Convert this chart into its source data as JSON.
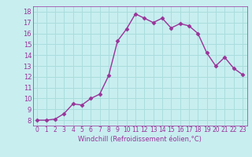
{
  "x": [
    0,
    1,
    2,
    3,
    4,
    5,
    6,
    7,
    8,
    9,
    10,
    11,
    12,
    13,
    14,
    15,
    16,
    17,
    18,
    19,
    20,
    21,
    22,
    23
  ],
  "y": [
    8.0,
    8.0,
    8.1,
    8.6,
    9.5,
    9.4,
    10.0,
    10.4,
    12.1,
    15.3,
    16.4,
    17.8,
    17.4,
    17.0,
    17.4,
    16.5,
    16.9,
    16.7,
    16.0,
    14.2,
    13.0,
    13.8,
    12.8,
    12.2
  ],
  "line_color": "#993399",
  "bg_color": "#c8eef0",
  "grid_color": "#aadddd",
  "xlabel": "Windchill (Refroidissement éolien,°C)",
  "ylabel_ticks": [
    8,
    9,
    10,
    11,
    12,
    13,
    14,
    15,
    16,
    17,
    18
  ],
  "xtick_labels": [
    "0",
    "1",
    "2",
    "3",
    "4",
    "5",
    "6",
    "7",
    "8",
    "9",
    "10",
    "11",
    "12",
    "13",
    "14",
    "15",
    "16",
    "17",
    "18",
    "19",
    "20",
    "21",
    "22",
    "23"
  ],
  "ylim": [
    7.5,
    18.5
  ],
  "xlim": [
    -0.5,
    23.5
  ],
  "marker": "D",
  "markersize": 2.5,
  "linewidth": 1.0,
  "font_color": "#993399",
  "xlabel_fontsize": 6.0,
  "tick_fontsize": 5.5,
  "ytick_fontsize": 6.0
}
